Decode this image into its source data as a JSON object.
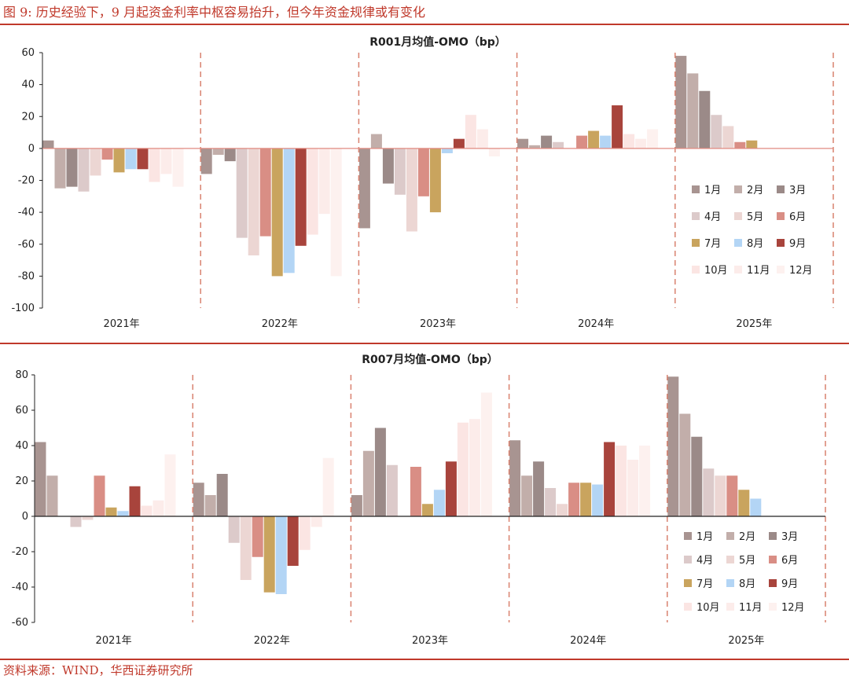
{
  "figure_title": "图 9:  历史经验下，9 月起资金利率中枢容易抬升，但今年资金规律或有变化",
  "source": "资料来源：WIND，华西证券研究所",
  "colors": {
    "accent": "#c0392b",
    "divider": "#d9826f",
    "month": [
      "#a89491",
      "#c2aeaa",
      "#9b8a88",
      "#dccaca",
      "#ecd6d3",
      "#d98e85",
      "#c9a45e",
      "#b3d5f5",
      "#a8443c",
      "#fbe5e3",
      "#fcecea",
      "#fdf1ef"
    ]
  },
  "chart_data": [
    {
      "type": "bar",
      "title": "R001月均值-OMO（bp）",
      "categories": [
        "2021年",
        "2022年",
        "2023年",
        "2024年",
        "2025年"
      ],
      "ylim": [
        -100,
        60
      ],
      "yticks": [
        -100,
        -80,
        -60,
        -40,
        -20,
        0,
        20,
        40,
        60
      ],
      "legend_position": "right",
      "legend_cols": 3,
      "series": [
        {
          "name": "1月",
          "values": [
            5,
            -16,
            -50,
            6,
            58
          ]
        },
        {
          "name": "2月",
          "values": [
            -25,
            -4,
            9,
            2,
            47
          ]
        },
        {
          "name": "3月",
          "values": [
            -24,
            -8,
            -22,
            8,
            36
          ]
        },
        {
          "name": "4月",
          "values": [
            -27,
            -56,
            -29,
            4,
            21
          ]
        },
        {
          "name": "5月",
          "values": [
            -17,
            -67,
            -52,
            0,
            14
          ]
        },
        {
          "name": "6月",
          "values": [
            -7,
            -55,
            -30,
            8,
            4
          ]
        },
        {
          "name": "7月",
          "values": [
            -15,
            -80,
            -40,
            11,
            5
          ]
        },
        {
          "name": "8月",
          "values": [
            -13,
            -78,
            -3,
            8,
            null
          ]
        },
        {
          "name": "9月",
          "values": [
            -13,
            -61,
            6,
            27,
            null
          ]
        },
        {
          "name": "10月",
          "values": [
            -21,
            -54,
            21,
            9,
            null
          ]
        },
        {
          "name": "11月",
          "values": [
            -16,
            -41,
            12,
            6,
            null
          ]
        },
        {
          "name": "12月",
          "values": [
            -24,
            -80,
            -5,
            12,
            null
          ]
        }
      ]
    },
    {
      "type": "bar",
      "title": "R007月均值-OMO（bp）",
      "categories": [
        "2021年",
        "2022年",
        "2023年",
        "2024年",
        "2025年"
      ],
      "ylim": [
        -60,
        80
      ],
      "yticks": [
        -60,
        -40,
        -20,
        0,
        20,
        40,
        60,
        80
      ],
      "legend_position": "bottom-right",
      "legend_cols": 3,
      "series": [
        {
          "name": "1月",
          "values": [
            42,
            19,
            12,
            43,
            79
          ]
        },
        {
          "name": "2月",
          "values": [
            23,
            12,
            37,
            23,
            58
          ]
        },
        {
          "name": "3月",
          "values": [
            0,
            24,
            50,
            31,
            45
          ]
        },
        {
          "name": "4月",
          "values": [
            -6,
            -15,
            29,
            16,
            27
          ]
        },
        {
          "name": "5月",
          "values": [
            -2,
            -36,
            0,
            7,
            23
          ]
        },
        {
          "name": "6月",
          "values": [
            23,
            -23,
            28,
            19,
            23
          ]
        },
        {
          "name": "7月",
          "values": [
            5,
            -43,
            7,
            19,
            15
          ]
        },
        {
          "name": "8月",
          "values": [
            3,
            -44,
            15,
            18,
            10
          ]
        },
        {
          "name": "9月",
          "values": [
            17,
            -28,
            31,
            42,
            null
          ]
        },
        {
          "name": "10月",
          "values": [
            6,
            -19,
            53,
            40,
            null
          ]
        },
        {
          "name": "11月",
          "values": [
            9,
            -6,
            55,
            32,
            null
          ]
        },
        {
          "name": "12月",
          "values": [
            35,
            33,
            70,
            40,
            null
          ]
        }
      ]
    }
  ]
}
